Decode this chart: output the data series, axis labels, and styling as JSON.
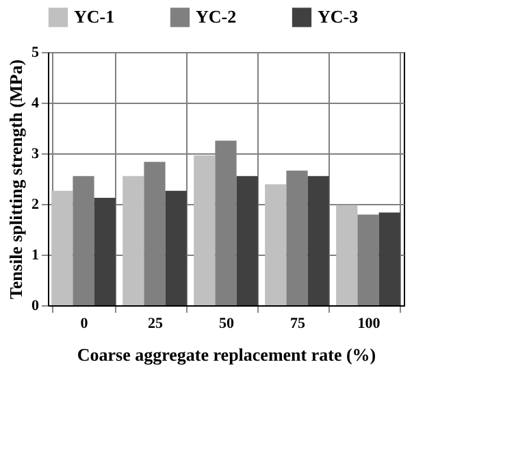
{
  "chart_data": {
    "type": "bar",
    "xlabel": "Coarse aggregate replacement rate (%)",
    "ylabel": "Tensile splitting strength (MPa)",
    "categories": [
      "0",
      "25",
      "50",
      "75",
      "100"
    ],
    "series": [
      {
        "name": "YC-1",
        "color": "#c0c0c0",
        "values": [
          2.26,
          2.55,
          2.96,
          2.39,
          1.98
        ]
      },
      {
        "name": "YC-2",
        "color": "#808080",
        "values": [
          2.55,
          2.83,
          3.25,
          2.66,
          1.79
        ]
      },
      {
        "name": "YC-3",
        "color": "#404040",
        "values": [
          2.12,
          2.26,
          2.55,
          2.55,
          1.83
        ]
      }
    ],
    "ylim": [
      0,
      5
    ],
    "yticks": [
      0,
      1,
      2,
      3,
      4,
      5
    ],
    "grid": true,
    "legend": "top"
  }
}
